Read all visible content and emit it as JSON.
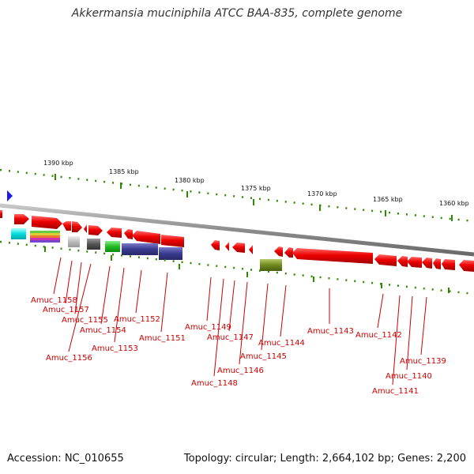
{
  "title": "Akkermansia muciniphila ATCC BAA-835, complete genome",
  "footer": {
    "accession": "Accession: NC_010655",
    "summary": "Topology: circular; Length: 2,664,102 bp; Genes: 2,200"
  },
  "colors": {
    "gene": "#ee0000",
    "label": "#cc0000",
    "backbone": "#888888",
    "tick": "#2e8b00",
    "marker": "#1a1aee"
  },
  "ruler_labels": [
    "1390 kbp",
    "1385 kbp",
    "1380 kbp",
    "1375 kbp",
    "1370 kbp",
    "1365 kbp",
    "1360 kbp"
  ],
  "gene_labels": [
    "Amuc_1158",
    "Amuc_1157",
    "Amuc_1155",
    "Amuc_1154",
    "Amuc_1156",
    "Amuc_1153",
    "Amuc_1152",
    "Amuc_1151",
    "Amuc_1149",
    "Amuc_1147",
    "Amuc_1146",
    "Amuc_1148",
    "Amuc_1145",
    "Amuc_1144",
    "Amuc_1143",
    "Amuc_1142",
    "Amuc_1141",
    "Amuc_1140",
    "Amuc_1139"
  ]
}
